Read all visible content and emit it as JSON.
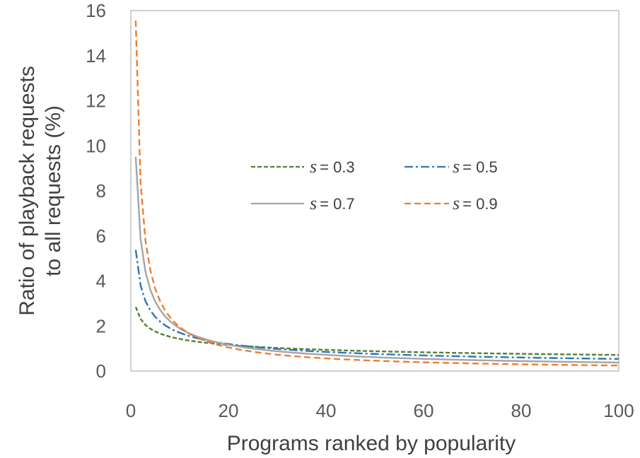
{
  "chart_data": {
    "type": "line",
    "title": "",
    "xlabel": "Programs ranked by popularity",
    "ylabel_lines": [
      "Ratio of playback requests",
      "to all requests (%)"
    ],
    "xlim": [
      0,
      100
    ],
    "ylim": [
      0,
      16
    ],
    "xticks": [
      0,
      20,
      40,
      60,
      80,
      100
    ],
    "yticks": [
      0,
      2,
      4,
      6,
      8,
      10,
      12,
      14,
      16
    ],
    "grid": false,
    "legend_position": "center-right",
    "series": [
      {
        "name": "s = 0.3",
        "s_label": "s",
        "value_label": "= 0.3",
        "color": "#548235",
        "dash": "dashed-short",
        "exponent": 0.3
      },
      {
        "name": "s = 0.5",
        "s_label": "s",
        "value_label": "= 0.5",
        "color": "#2E75B6",
        "dash": "dash-dot",
        "exponent": 0.5
      },
      {
        "name": "s = 0.7",
        "s_label": "s",
        "value_label": "= 0.7",
        "color": "#A5A5A5",
        "dash": "solid",
        "exponent": 0.7
      },
      {
        "name": "s = 0.9",
        "s_label": "s",
        "value_label": "= 0.9",
        "color": "#ED7D31",
        "dash": "dashed",
        "exponent": 0.9
      }
    ],
    "x_range": [
      1,
      100
    ]
  }
}
